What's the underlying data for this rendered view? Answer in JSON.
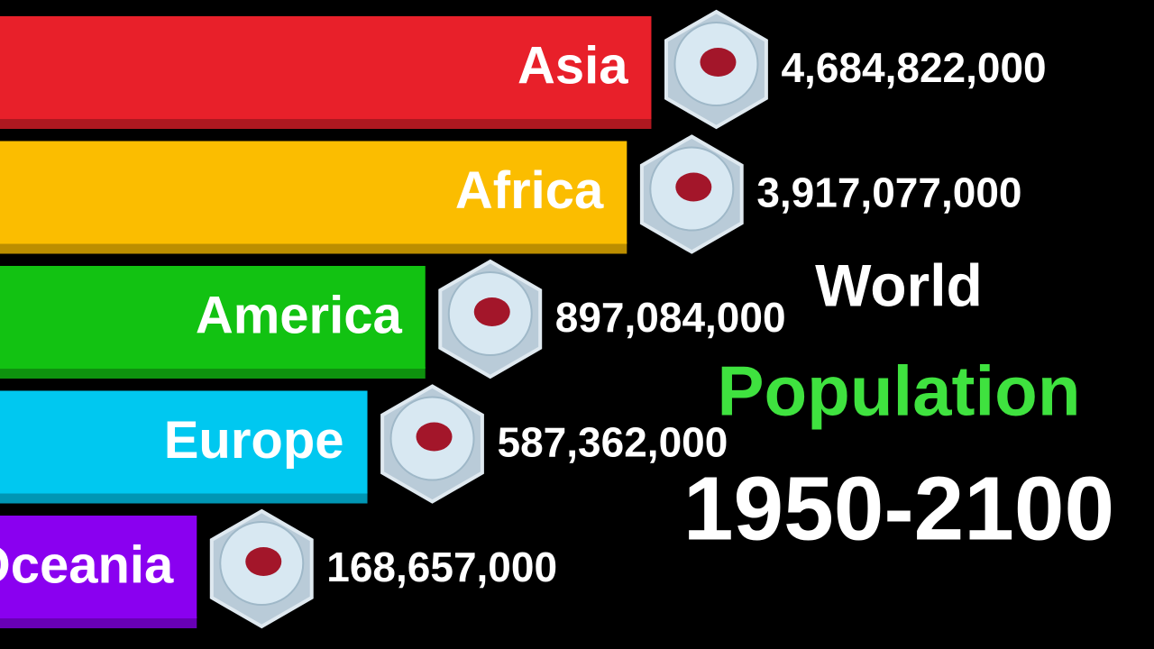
{
  "chart_data": {
    "type": "bar",
    "orientation": "horizontal",
    "title_lines": [
      "World",
      "Population",
      "1950-2100"
    ],
    "categories": [
      "Asia",
      "Africa",
      "America",
      "Europe",
      "Oceania"
    ],
    "values": [
      4684822000,
      3917077000,
      897084000,
      587362000,
      168657000
    ],
    "value_labels": [
      "4,684,822,000",
      "3,917,077,000",
      "897,084,000",
      "587,362,000",
      "168,657,000"
    ],
    "colors": [
      "#e8202a",
      "#fbbd00",
      "#12c212",
      "#00c8f0",
      "#8a00f0"
    ],
    "xscale": "log",
    "xlim": [
      40000000,
      6000000000
    ]
  }
}
